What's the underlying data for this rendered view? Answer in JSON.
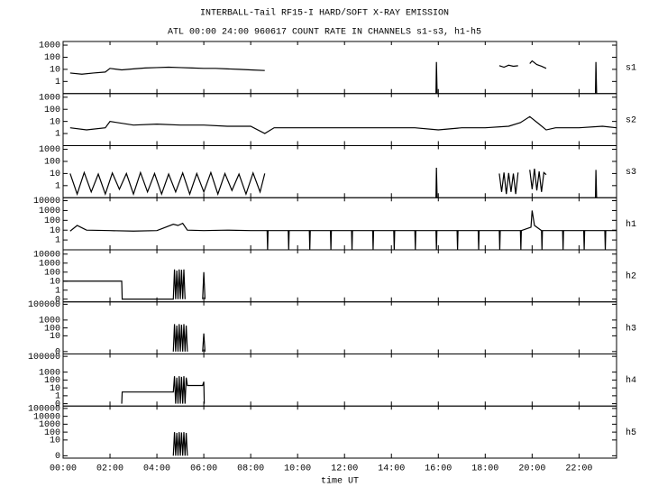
{
  "chart_data": [
    {
      "type": "line",
      "title": "INTERBALL-Tail RF15-I HARD/SOFT X-RAY EMISSION",
      "subtitle": "ATL 00:00 24:00 960617  COUNT RATE IN CHANNELS s1-s3, h1-h5",
      "log_scale": true,
      "ylim": [
        0.1,
        2000
      ],
      "yticks": [
        1000,
        100,
        10,
        1
      ],
      "x": [
        0.3,
        0.8,
        1.3,
        1.8,
        2.0,
        2.5,
        3,
        3.5,
        4,
        4.5,
        5,
        5.5,
        6,
        6.5,
        7,
        7.5,
        8,
        8.6,
        8.65,
        15.9,
        15.92,
        15.95,
        15.97,
        18.6,
        18.8,
        19.0,
        19.2,
        19.4,
        19.45,
        19.9,
        20.0,
        20.2,
        20.4,
        20.6,
        20.65,
        22.7,
        22.72,
        22.75
      ],
      "series": [
        {
          "name": "s1",
          "color": "#000000",
          "values": [
            5,
            4,
            5,
            6,
            12,
            9,
            11,
            13,
            14,
            15,
            14,
            13,
            12,
            12,
            11,
            10,
            9,
            8,
            null,
            0.1,
            40,
            0.1,
            null,
            20,
            15,
            22,
            18,
            20,
            null,
            30,
            50,
            25,
            18,
            12,
            null,
            0.1,
            40,
            0.1
          ]
        }
      ]
    },
    {
      "type": "line",
      "log_scale": true,
      "ylim": [
        0.1,
        2000
      ],
      "yticks": [
        1000,
        100,
        10,
        1
      ],
      "x": [
        0.3,
        1,
        1.8,
        2,
        3,
        4,
        5,
        6,
        7,
        8,
        8.6,
        9,
        10,
        11,
        12,
        13,
        14,
        15,
        16,
        17,
        18,
        19,
        19.5,
        19.9,
        20.3,
        20.6,
        21,
        22,
        23,
        23.6
      ],
      "series": [
        {
          "name": "s2",
          "color": "#000000",
          "values": [
            3,
            2,
            3,
            10,
            5,
            6,
            5,
            5,
            4,
            4,
            1,
            3,
            3,
            3,
            3,
            3,
            3,
            3,
            2,
            3,
            3,
            4,
            8,
            25,
            6,
            2,
            3,
            3,
            4,
            3
          ]
        }
      ]
    },
    {
      "type": "line",
      "log_scale": true,
      "ylim": [
        0.1,
        2000
      ],
      "yticks": [
        1000,
        100,
        10,
        1
      ],
      "x": [
        0.3,
        0.6,
        0.9,
        1.2,
        1.5,
        1.8,
        2.1,
        2.4,
        2.7,
        3.0,
        3.3,
        3.6,
        3.9,
        4.2,
        4.5,
        4.8,
        5.1,
        5.4,
        5.7,
        6.0,
        6.3,
        6.6,
        6.9,
        7.2,
        7.5,
        7.8,
        8.1,
        8.4,
        8.6,
        8.65,
        15.9,
        15.92,
        15.95,
        15.97,
        18.6,
        18.7,
        18.8,
        18.9,
        19.0,
        19.1,
        19.2,
        19.3,
        19.4,
        19.45,
        19.9,
        20.0,
        20.1,
        20.2,
        20.3,
        20.4,
        20.5,
        20.6,
        20.65,
        22.7,
        22.72,
        22.75
      ],
      "series": [
        {
          "name": "s3",
          "color": "#000000",
          "values": [
            10,
            0.2,
            12,
            0.3,
            9,
            0.2,
            11,
            0.5,
            10,
            0.2,
            12,
            0.3,
            10,
            0.2,
            9,
            0.3,
            11,
            0.2,
            10,
            0.3,
            12,
            0.2,
            10,
            0.4,
            9,
            0.2,
            11,
            0.3,
            10,
            null,
            0.1,
            30,
            0.1,
            null,
            10,
            0.3,
            12,
            0.2,
            11,
            0.3,
            10,
            0.2,
            12,
            null,
            20,
            0.5,
            25,
            0.4,
            15,
            0.3,
            12,
            8,
            null,
            0.1,
            20,
            0.1
          ]
        }
      ]
    },
    {
      "type": "line",
      "log_scale": true,
      "ylim": [
        0.1,
        20000
      ],
      "yticks": [
        10000,
        1000,
        100,
        10,
        1
      ],
      "x": [
        0.3,
        0.6,
        1,
        2,
        3,
        4,
        4.7,
        4.9,
        5.1,
        5.3,
        6,
        7,
        8,
        8.7,
        8.72,
        8.74,
        9.6,
        9.62,
        9.64,
        10.5,
        10.52,
        10.54,
        11.4,
        11.42,
        11.44,
        12.3,
        12.32,
        12.34,
        13.2,
        13.22,
        13.24,
        14.1,
        14.12,
        14.14,
        15.0,
        15.02,
        15.04,
        15.9,
        15.92,
        15.94,
        16.8,
        16.82,
        16.84,
        17.7,
        17.72,
        17.74,
        18.6,
        18.62,
        18.64,
        19.5,
        19.52,
        19.54,
        19.95,
        20.0,
        20.1,
        20.4,
        20.42,
        20.44,
        21.3,
        21.32,
        21.34,
        22.2,
        22.22,
        22.24,
        23.1,
        23.12,
        23.14,
        23.6
      ],
      "series": [
        {
          "name": "h1",
          "color": "#000000",
          "values": [
            8,
            30,
            10,
            9,
            8,
            9,
            40,
            30,
            50,
            10,
            9,
            10,
            9,
            9,
            0.1,
            9,
            9,
            0.1,
            9,
            9,
            0.1,
            9,
            9,
            0.1,
            9,
            9,
            0.1,
            9,
            9,
            0.1,
            9,
            9,
            0.1,
            9,
            9,
            0.1,
            9,
            9,
            0.1,
            9,
            9,
            0.1,
            9,
            9,
            0.1,
            9,
            9,
            0.1,
            9,
            9,
            0.1,
            9,
            20,
            1000,
            30,
            9,
            0.1,
            9,
            9,
            0.1,
            9,
            9,
            0.1,
            9,
            9,
            0.1,
            9,
            9
          ]
        }
      ]
    },
    {
      "type": "line",
      "log_scale": true,
      "ylim": [
        0.05,
        30000
      ],
      "yticks": [
        10000,
        1000,
        100,
        10,
        1,
        {
          "value": 0.1,
          "label": "0"
        }
      ],
      "x": [
        0,
        2.5,
        2.52,
        4.7,
        4.75,
        4.8,
        4.85,
        4.9,
        4.95,
        5.0,
        5.05,
        5.1,
        5.15,
        5.2,
        5.25,
        5.95,
        6.0,
        6.05
      ],
      "series": [
        {
          "name": "h2",
          "color": "#000000",
          "values": [
            10,
            10,
            0.1,
            0.1,
            200,
            0.1,
            150,
            0.1,
            200,
            0.1,
            180,
            0.1,
            200,
            0.1,
            null,
            0.1,
            100,
            0.1
          ]
        }
      ]
    },
    {
      "type": "line",
      "log_scale": true,
      "ylim": [
        0.05,
        200000
      ],
      "yticks": [
        100000,
        1000,
        100,
        10,
        {
          "value": 0.1,
          "label": "0"
        }
      ],
      "x": [
        4.7,
        4.75,
        4.8,
        4.85,
        4.9,
        4.95,
        5.0,
        5.05,
        5.1,
        5.15,
        5.2,
        5.25,
        5.3,
        5.35,
        5.95,
        6.0,
        6.05
      ],
      "series": [
        {
          "name": "h3",
          "color": "#000000",
          "values": [
            0.1,
            300,
            0.1,
            200,
            0.1,
            300,
            0.1,
            250,
            0.1,
            300,
            0.1,
            200,
            0.1,
            null,
            0.1,
            20,
            0.1
          ]
        }
      ]
    },
    {
      "type": "line",
      "log_scale": true,
      "ylim": [
        0.05,
        200000
      ],
      "yticks": [
        100000,
        1000,
        100,
        10,
        1,
        {
          "value": 0.1,
          "label": "0"
        }
      ],
      "x": [
        2.5,
        2.52,
        4.7,
        4.75,
        4.8,
        4.85,
        4.9,
        4.95,
        5.0,
        5.05,
        5.1,
        5.15,
        5.2,
        5.25,
        5.3,
        5.9,
        5.95,
        6.0,
        6.02
      ],
      "series": [
        {
          "name": "h4",
          "color": "#000000",
          "values": [
            0.1,
            3,
            3,
            300,
            0.1,
            200,
            0.1,
            300,
            0.1,
            250,
            0.1,
            300,
            0.1,
            200,
            20,
            20,
            20,
            60,
            0.1
          ]
        }
      ]
    },
    {
      "type": "line",
      "log_scale": true,
      "ylim": [
        0.05,
        200000
      ],
      "yticks": [
        100000,
        10000,
        1000,
        100,
        10,
        {
          "value": 0.1,
          "label": "0"
        }
      ],
      "x": [
        4.7,
        4.75,
        4.8,
        4.85,
        4.9,
        4.95,
        5.0,
        5.05,
        5.1,
        5.15,
        5.2,
        5.25,
        5.3
      ],
      "series": [
        {
          "name": "h5",
          "color": "#000000",
          "values": [
            0.1,
            100,
            0.1,
            80,
            0.1,
            100,
            0.1,
            90,
            0.1,
            100,
            0.1,
            80,
            0.1
          ]
        }
      ],
      "xlabel": "time UT",
      "xlim": [
        0,
        23.6
      ],
      "xticks": [
        {
          "value": 0,
          "label": "00:00"
        },
        {
          "value": 2,
          "label": "02:00"
        },
        {
          "value": 4,
          "label": "04:00"
        },
        {
          "value": 6,
          "label": "06:00"
        },
        {
          "value": 8,
          "label": "08:00"
        },
        {
          "value": 10,
          "label": "10:00"
        },
        {
          "value": 12,
          "label": "12:00"
        },
        {
          "value": 14,
          "label": "14:00"
        },
        {
          "value": 16,
          "label": "16:00"
        },
        {
          "value": 18,
          "label": "18:00"
        },
        {
          "value": 20,
          "label": "20:00"
        },
        {
          "value": 22,
          "label": "22:00"
        }
      ]
    }
  ]
}
